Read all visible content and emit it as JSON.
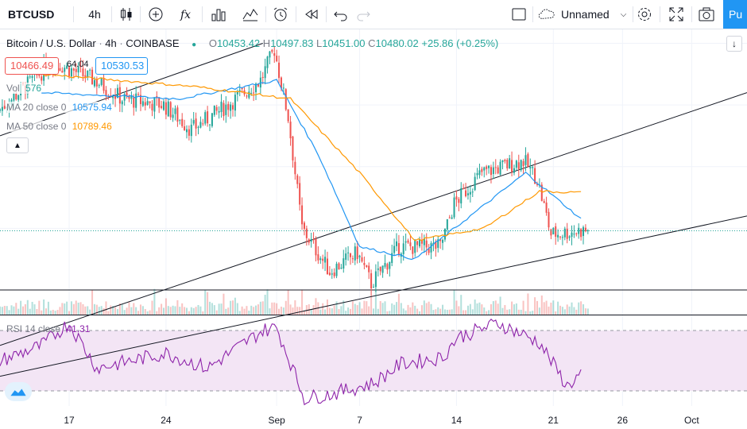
{
  "toolbar": {
    "symbol": "BTCUSD",
    "interval": "4h",
    "layout_name": "Unnamed",
    "publish_label": "Pu",
    "icons": [
      "candles-icon",
      "add-indicator-icon",
      "fx-icon",
      "bar-chart-icon",
      "multi-chart-icon",
      "alarm-icon",
      "replay-icon",
      "undo-icon",
      "redo-icon",
      "layout-icon",
      "cloud-icon",
      "settings-icon",
      "fullscreen-icon",
      "camera-icon"
    ]
  },
  "legend": {
    "title": "Bitcoin / U.S. Dollar",
    "interval": "4h",
    "exchange": "COINBASE",
    "open_label": "O",
    "open": "10453.42",
    "high_label": "H",
    "high": "10497.83",
    "low_label": "L",
    "low": "10451.00",
    "close_label": "C",
    "close": "10480.02",
    "change": "+25.86 (+0.25%)",
    "bid": "10466.49",
    "spread": "64.04",
    "ask": "10530.53"
  },
  "indicators": {
    "vol_label": "Vol",
    "vol_value": "576",
    "ma20_label": "MA 20 close 0",
    "ma20_value": "10575.94",
    "ma50_label": "MA 50 close 0",
    "ma50_value": "10789.46",
    "rsi_label": "RSI 14 close",
    "rsi_value": "41.31"
  },
  "time_axis": {
    "ticks": [
      "17",
      "24",
      "Sep",
      "7",
      "14",
      "21",
      "26",
      "Oct"
    ]
  },
  "colors": {
    "up": "#26a69a",
    "down": "#ef5350",
    "ma20": "#2196f3",
    "ma50": "#ff9800",
    "rsi": "#8e24aa",
    "rsi_band": "#f3e5f5",
    "accent": "#2196f3"
  },
  "chart_data": {
    "type": "candlestick",
    "symbol": "BTCUSD",
    "interval": "4h",
    "x_range": [
      "Aug 12",
      "Oct 5"
    ],
    "x_ticks": [
      "17",
      "24",
      "Sep",
      "7",
      "14",
      "21",
      "26",
      "Oct"
    ],
    "price_range": [
      9800,
      12100
    ],
    "anchors": [
      {
        "date": "Aug 12",
        "price": 11450
      },
      {
        "date": "Aug 16",
        "price": 11850
      },
      {
        "date": "Aug 19",
        "price": 11700
      },
      {
        "date": "Aug 21",
        "price": 11550
      },
      {
        "date": "Aug 24",
        "price": 11500
      },
      {
        "date": "Aug 26",
        "price": 11300
      },
      {
        "date": "Aug 28",
        "price": 11450
      },
      {
        "date": "Aug 31",
        "price": 11700
      },
      {
        "date": "Sep 1",
        "price": 11950
      },
      {
        "date": "Sep 2",
        "price": 11400
      },
      {
        "date": "Sep 3",
        "price": 10500
      },
      {
        "date": "Sep 5",
        "price": 10150
      },
      {
        "date": "Sep 7",
        "price": 10300
      },
      {
        "date": "Sep 8",
        "price": 10050
      },
      {
        "date": "Sep 10",
        "price": 10350
      },
      {
        "date": "Sep 13",
        "price": 10350
      },
      {
        "date": "Sep 14",
        "price": 10700
      },
      {
        "date": "Sep 16",
        "price": 10950
      },
      {
        "date": "Sep 19",
        "price": 11050
      },
      {
        "date": "Sep 20",
        "price": 10900
      },
      {
        "date": "Sep 21",
        "price": 10450
      },
      {
        "date": "Sep 23",
        "price": 10480
      }
    ],
    "ma20_anchors": [
      {
        "date": "Aug 15",
        "price": 11600
      },
      {
        "date": "Aug 25",
        "price": 11550
      },
      {
        "date": "Sep 1",
        "price": 11700
      },
      {
        "date": "Sep 4",
        "price": 11100
      },
      {
        "date": "Sep 7",
        "price": 10350
      },
      {
        "date": "Sep 11",
        "price": 10250
      },
      {
        "date": "Sep 15",
        "price": 10600
      },
      {
        "date": "Sep 19",
        "price": 10950
      },
      {
        "date": "Sep 23",
        "price": 10575.94
      }
    ],
    "ma50_anchors": [
      {
        "date": "Aug 15",
        "price": 11750
      },
      {
        "date": "Aug 26",
        "price": 11650
      },
      {
        "date": "Sep 2",
        "price": 11550
      },
      {
        "date": "Sep 7",
        "price": 10950
      },
      {
        "date": "Sep 11",
        "price": 10400
      },
      {
        "date": "Sep 16",
        "price": 10500
      },
      {
        "date": "Sep 20",
        "price": 10800
      },
      {
        "date": "Sep 23",
        "price": 10789.46
      }
    ],
    "rsi_anchors": [
      {
        "date": "Aug 12",
        "value": 50
      },
      {
        "date": "Aug 15",
        "value": 60
      },
      {
        "date": "Aug 17",
        "value": 75
      },
      {
        "date": "Aug 19",
        "value": 45
      },
      {
        "date": "Aug 24",
        "value": 55
      },
      {
        "date": "Aug 27",
        "value": 45
      },
      {
        "date": "Aug 31",
        "value": 70
      },
      {
        "date": "Sep 1",
        "value": 72
      },
      {
        "date": "Sep 3",
        "value": 25
      },
      {
        "date": "Sep 5",
        "value": 28
      },
      {
        "date": "Sep 8",
        "value": 35
      },
      {
        "date": "Sep 10",
        "value": 48
      },
      {
        "date": "Sep 13",
        "value": 52
      },
      {
        "date": "Sep 14",
        "value": 65
      },
      {
        "date": "Sep 17",
        "value": 75
      },
      {
        "date": "Sep 20",
        "value": 62
      },
      {
        "date": "Sep 22",
        "value": 33
      },
      {
        "date": "Sep 23",
        "value": 41.31
      }
    ],
    "rsi_range": [
      20,
      80
    ],
    "rsi_band": [
      30,
      70
    ],
    "trendlines": [
      {
        "start": {
          "date": "Aug 12",
          "price": 11250
        },
        "end": {
          "date": "Aug 31",
          "price": 12000
        }
      },
      {
        "start": {
          "date": "Aug 12",
          "price": 9550
        },
        "end": {
          "date": "Oct 5",
          "price": 11600
        }
      },
      {
        "start": {
          "date": "Aug 12",
          "price": 9300
        },
        "end": {
          "date": "Oct 5",
          "price": 10600
        }
      },
      {
        "start": {
          "date": "Aug 12",
          "price": 10000
        },
        "end": {
          "date": "Oct 5",
          "price": 10000
        }
      }
    ],
    "current_price": 10480.02
  }
}
